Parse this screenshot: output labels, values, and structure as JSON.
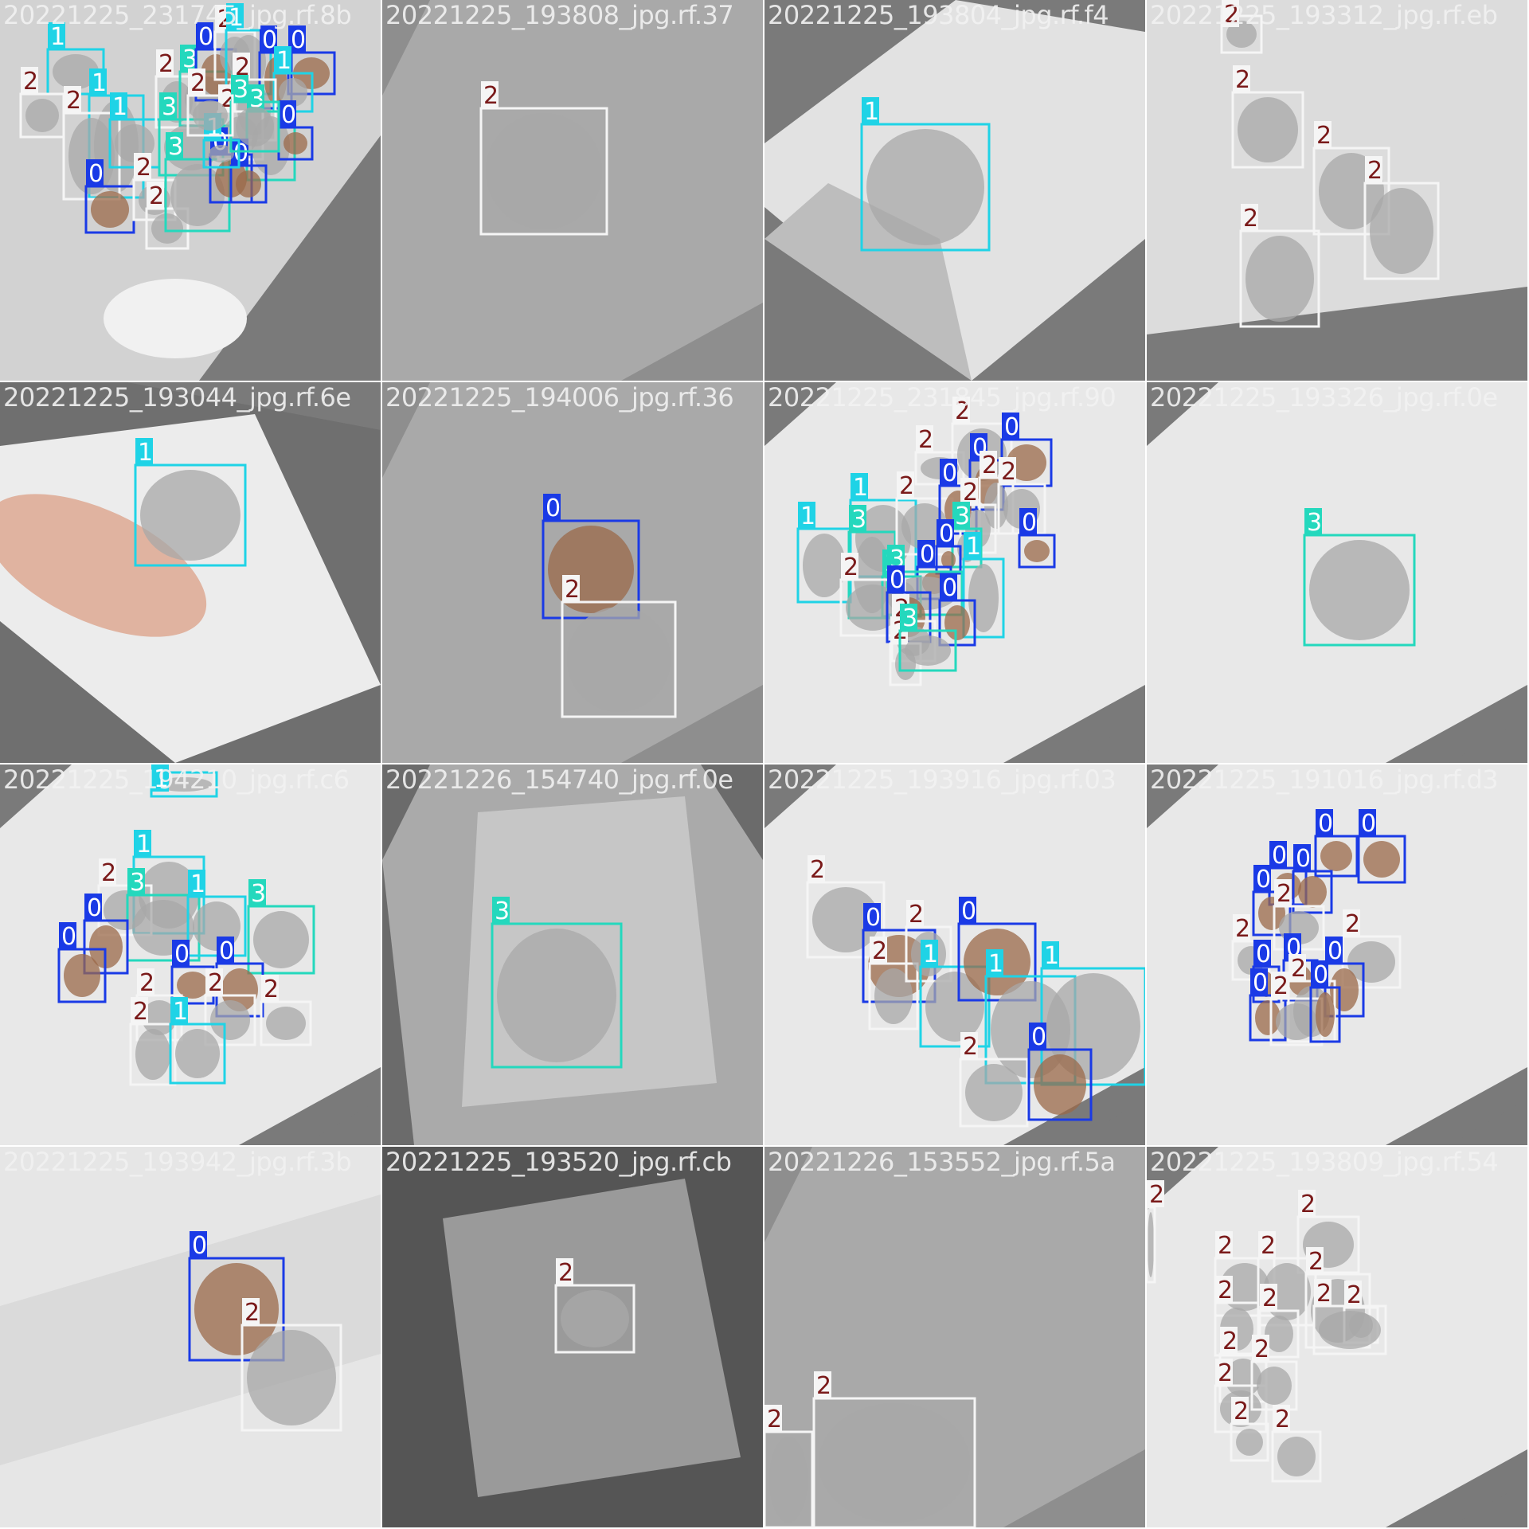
{
  "class_colors": {
    "0": "#1a3ae6",
    "1": "#1fd3e6",
    "2": "#f5f5f5",
    "3": "#24d8bd"
  },
  "class_text": {
    "0": "#ffffff",
    "1": "#ffffff",
    "2": "#7a1a1a",
    "3": "#ffffff"
  },
  "tiles": [
    {
      "name": "20221225_231745_jpg.rf.8b",
      "boxes": [
        {
          "c": "1",
          "r": [
            60,
            62,
            130,
            118
          ]
        },
        {
          "c": "2",
          "r": [
            26,
            118,
            80,
            172
          ]
        },
        {
          "c": "1",
          "r": [
            112,
            120,
            180,
            248
          ]
        },
        {
          "c": "2",
          "r": [
            80,
            142,
            150,
            250
          ]
        },
        {
          "c": "1",
          "r": [
            138,
            150,
            200,
            210
          ]
        },
        {
          "c": "0",
          "r": [
            108,
            234,
            168,
            292
          ]
        },
        {
          "c": "2",
          "r": [
            168,
            226,
            220,
            276
          ]
        },
        {
          "c": "2",
          "r": [
            184,
            262,
            236,
            312
          ]
        },
        {
          "c": "2",
          "r": [
            196,
            96,
            248,
            160
          ]
        },
        {
          "c": "3",
          "r": [
            226,
            90,
            292,
            158
          ]
        },
        {
          "c": "3",
          "r": [
            200,
            150,
            280,
            220
          ]
        },
        {
          "c": "3",
          "r": [
            208,
            200,
            288,
            290
          ]
        },
        {
          "c": "0",
          "r": [
            246,
            62,
            296,
            126
          ]
        },
        {
          "c": "2",
          "r": [
            270,
            40,
            320,
            100
          ]
        },
        {
          "c": "1",
          "r": [
            284,
            38,
            340,
            118
          ]
        },
        {
          "c": "0",
          "r": [
            326,
            66,
            366,
            136
          ]
        },
        {
          "c": "0",
          "r": [
            362,
            66,
            420,
            118
          ]
        },
        {
          "c": "1",
          "r": [
            344,
            92,
            392,
            140
          ]
        },
        {
          "c": "2",
          "r": [
            292,
            100,
            346,
            176
          ]
        },
        {
          "c": "2",
          "r": [
            274,
            140,
            330,
            200
          ]
        },
        {
          "c": "3",
          "r": [
            310,
            140,
            370,
            226
          ]
        },
        {
          "c": "0",
          "r": [
            350,
            160,
            392,
            200
          ]
        },
        {
          "c": "0",
          "r": [
            264,
            194,
            316,
            254
          ]
        },
        {
          "c": "0",
          "r": [
            290,
            208,
            334,
            254
          ]
        },
        {
          "c": "1",
          "r": [
            256,
            176,
            300,
            210
          ]
        },
        {
          "c": "3",
          "r": [
            290,
            128,
            350,
            190
          ]
        },
        {
          "c": "2",
          "r": [
            236,
            120,
            292,
            170
          ]
        }
      ],
      "bg": "grey-diamond"
    },
    {
      "name": "20221225_193808_jpg.rf.37",
      "boxes": [
        {
          "c": "2",
          "r": [
            124,
            136,
            282,
            294
          ]
        }
      ],
      "bg": "flat"
    },
    {
      "name": "20221225_193804_jpg.rf.f4",
      "boxes": [
        {
          "c": "1",
          "r": [
            122,
            156,
            282,
            314
          ]
        }
      ],
      "bg": "bright"
    },
    {
      "name": "20221225_193312_jpg.rf.eb",
      "boxes": [
        {
          "c": "2",
          "r": [
            94,
            20,
            144,
            66
          ]
        },
        {
          "c": "2",
          "r": [
            108,
            116,
            196,
            210
          ]
        },
        {
          "c": "2",
          "r": [
            210,
            186,
            304,
            294
          ]
        },
        {
          "c": "2",
          "r": [
            274,
            230,
            366,
            350
          ]
        },
        {
          "c": "2",
          "r": [
            118,
            290,
            216,
            410
          ]
        }
      ],
      "bg": "light"
    },
    {
      "name": "20221225_193044_jpg.rf.6e",
      "boxes": [
        {
          "c": "1",
          "r": [
            170,
            104,
            308,
            230
          ]
        }
      ],
      "bg": "hand"
    },
    {
      "name": "20221225_194006_jpg.rf.36",
      "boxes": [
        {
          "c": "0",
          "r": [
            202,
            174,
            322,
            296
          ]
        },
        {
          "c": "2",
          "r": [
            226,
            276,
            368,
            420
          ]
        }
      ],
      "bg": "flat"
    },
    {
      "name": "20221225_231845_jpg.rf.90",
      "boxes": [
        {
          "c": "1",
          "r": [
            42,
            184,
            108,
            276
          ]
        },
        {
          "c": "1",
          "r": [
            108,
            148,
            190,
            244
          ]
        },
        {
          "c": "3",
          "r": [
            106,
            188,
            164,
            296
          ]
        },
        {
          "c": "2",
          "r": [
            190,
            88,
            250,
            128
          ]
        },
        {
          "c": "2",
          "r": [
            166,
            146,
            236,
            216
          ]
        },
        {
          "c": "2",
          "r": [
            236,
            52,
            310,
            130
          ]
        },
        {
          "c": "0",
          "r": [
            258,
            98,
            300,
            160
          ]
        },
        {
          "c": "0",
          "r": [
            298,
            72,
            360,
            130
          ]
        },
        {
          "c": "0",
          "r": [
            220,
            130,
            266,
            190
          ]
        },
        {
          "c": "2",
          "r": [
            270,
            120,
            312,
            190
          ]
        },
        {
          "c": "2",
          "r": [
            246,
            154,
            290,
            214
          ]
        },
        {
          "c": "3",
          "r": [
            236,
            184,
            272,
            232
          ]
        },
        {
          "c": "0",
          "r": [
            216,
            206,
            246,
            240
          ]
        },
        {
          "c": "2",
          "r": [
            294,
            128,
            352,
            190
          ]
        },
        {
          "c": "0",
          "r": [
            320,
            192,
            364,
            232
          ]
        },
        {
          "c": "0",
          "r": [
            192,
            232,
            234,
            272
          ]
        },
        {
          "c": "3",
          "r": [
            148,
            244,
            196,
            294
          ]
        },
        {
          "c": "3",
          "r": [
            154,
            238,
            248,
            292
          ]
        },
        {
          "c": "1",
          "r": [
            250,
            222,
            300,
            320
          ]
        },
        {
          "c": "2",
          "r": [
            96,
            248,
            176,
            318
          ]
        },
        {
          "c": "0",
          "r": [
            154,
            264,
            208,
            326
          ]
        },
        {
          "c": "0",
          "r": [
            220,
            274,
            264,
            330
          ]
        },
        {
          "c": "2",
          "r": [
            160,
            300,
            214,
            350
          ]
        },
        {
          "c": "2",
          "r": [
            158,
            328,
            196,
            380
          ]
        },
        {
          "c": "3",
          "r": [
            170,
            312,
            240,
            362
          ]
        }
      ],
      "bg": "white-diamond"
    },
    {
      "name": "20221225_193326_jpg.rf.0e",
      "boxes": [
        {
          "c": "3",
          "r": [
            198,
            192,
            336,
            330
          ]
        }
      ],
      "bg": "white-diamond"
    },
    {
      "name": "20221225_194210_jpg.rf.c6",
      "boxes": [
        {
          "c": "1",
          "r": [
            190,
            10,
            272,
            40
          ]
        },
        {
          "c": "1",
          "r": [
            168,
            116,
            256,
            212
          ]
        },
        {
          "c": "2",
          "r": [
            124,
            152,
            190,
            214
          ]
        },
        {
          "c": "3",
          "r": [
            160,
            164,
            250,
            246
          ]
        },
        {
          "c": "1",
          "r": [
            236,
            166,
            308,
            240
          ]
        },
        {
          "c": "3",
          "r": [
            312,
            178,
            394,
            262
          ]
        },
        {
          "c": "0",
          "r": [
            106,
            196,
            160,
            262
          ]
        },
        {
          "c": "0",
          "r": [
            74,
            232,
            132,
            298
          ]
        },
        {
          "c": "0",
          "r": [
            216,
            254,
            268,
            300
          ]
        },
        {
          "c": "0",
          "r": [
            272,
            250,
            330,
            316
          ]
        },
        {
          "c": "2",
          "r": [
            172,
            290,
            228,
            346
          ]
        },
        {
          "c": "2",
          "r": [
            258,
            290,
            320,
            352
          ]
        },
        {
          "c": "2",
          "r": [
            328,
            298,
            390,
            352
          ]
        },
        {
          "c": "2",
          "r": [
            164,
            326,
            220,
            402
          ]
        },
        {
          "c": "1",
          "r": [
            214,
            326,
            282,
            400
          ]
        }
      ],
      "bg": "white-diamond"
    },
    {
      "name": "20221226_154740_jpg.rf.0e",
      "boxes": [
        {
          "c": "3",
          "r": [
            138,
            200,
            300,
            380
          ]
        }
      ],
      "bg": "grey-fold"
    },
    {
      "name": "20221225_193916_jpg.rf.03",
      "boxes": [
        {
          "c": "2",
          "r": [
            54,
            148,
            150,
            242
          ]
        },
        {
          "c": "0",
          "r": [
            124,
            208,
            214,
            298
          ]
        },
        {
          "c": "2",
          "r": [
            132,
            250,
            192,
            332
          ]
        },
        {
          "c": "2",
          "r": [
            178,
            204,
            234,
            272
          ]
        },
        {
          "c": "1",
          "r": [
            196,
            254,
            282,
            354
          ]
        },
        {
          "c": "0",
          "r": [
            244,
            200,
            340,
            296
          ]
        },
        {
          "c": "1",
          "r": [
            278,
            266,
            390,
            400
          ]
        },
        {
          "c": "1",
          "r": [
            348,
            256,
            478,
            402
          ]
        },
        {
          "c": "2",
          "r": [
            246,
            370,
            330,
            454
          ]
        },
        {
          "c": "0",
          "r": [
            332,
            358,
            410,
            446
          ]
        }
      ],
      "bg": "white-diamond"
    },
    {
      "name": "20221225_191016_jpg.rf.d3",
      "boxes": [
        {
          "c": "0",
          "r": [
            212,
            90,
            264,
            140
          ]
        },
        {
          "c": "0",
          "r": [
            266,
            90,
            324,
            148
          ]
        },
        {
          "c": "0",
          "r": [
            154,
            130,
            200,
            176
          ]
        },
        {
          "c": "0",
          "r": [
            184,
            134,
            232,
            186
          ]
        },
        {
          "c": "0",
          "r": [
            134,
            160,
            180,
            214
          ]
        },
        {
          "c": "2",
          "r": [
            160,
            178,
            222,
            232
          ]
        },
        {
          "c": "2",
          "r": [
            246,
            216,
            318,
            280
          ]
        },
        {
          "c": "2",
          "r": [
            108,
            222,
            154,
            270
          ]
        },
        {
          "c": "0",
          "r": [
            134,
            254,
            166,
            298
          ]
        },
        {
          "c": "0",
          "r": [
            172,
            246,
            214,
            296
          ]
        },
        {
          "c": "0",
          "r": [
            224,
            250,
            272,
            316
          ]
        },
        {
          "c": "2",
          "r": [
            178,
            272,
            236,
            348
          ]
        },
        {
          "c": "0",
          "r": [
            130,
            290,
            174,
            346
          ]
        },
        {
          "c": "2",
          "r": [
            156,
            294,
            220,
            352
          ]
        },
        {
          "c": "0",
          "r": [
            206,
            280,
            242,
            348
          ]
        }
      ],
      "bg": "white-diamond"
    },
    {
      "name": "20221225_193942_jpg.rf.3b",
      "boxes": [
        {
          "c": "0",
          "r": [
            238,
            140,
            356,
            268
          ]
        },
        {
          "c": "2",
          "r": [
            304,
            224,
            428,
            356
          ]
        }
      ],
      "bg": "light-full"
    },
    {
      "name": "20221225_193520_jpg.rf.cb",
      "boxes": [
        {
          "c": "2",
          "r": [
            218,
            174,
            316,
            258
          ]
        }
      ],
      "bg": "dark-card"
    },
    {
      "name": "20221226_153552_jpg.rf.5a",
      "boxes": [
        {
          "c": "2",
          "r": [
            0,
            358,
            60,
            478
          ]
        },
        {
          "c": "2",
          "r": [
            62,
            316,
            264,
            478
          ]
        }
      ],
      "bg": "flat"
    },
    {
      "name": "20221225_193809_jpg.rf.54",
      "boxes": [
        {
          "c": "2",
          "r": [
            0,
            76,
            10,
            170
          ]
        },
        {
          "c": "2",
          "r": [
            190,
            88,
            266,
            158
          ]
        },
        {
          "c": "2",
          "r": [
            86,
            140,
            160,
            212
          ]
        },
        {
          "c": "2",
          "r": [
            140,
            140,
            212,
            224
          ]
        },
        {
          "c": "2",
          "r": [
            200,
            160,
            280,
            252
          ]
        },
        {
          "c": "2",
          "r": [
            86,
            196,
            140,
            262
          ]
        },
        {
          "c": "2",
          "r": [
            142,
            206,
            190,
            264
          ]
        },
        {
          "c": "2",
          "r": [
            248,
            202,
            290,
            246
          ]
        },
        {
          "c": "2",
          "r": [
            92,
            260,
            150,
            320
          ]
        },
        {
          "c": "2",
          "r": [
            86,
            300,
            150,
            358
          ]
        },
        {
          "c": "2",
          "r": [
            132,
            270,
            188,
            330
          ]
        },
        {
          "c": "2",
          "r": [
            106,
            348,
            152,
            394
          ]
        },
        {
          "c": "2",
          "r": [
            158,
            358,
            218,
            420
          ]
        },
        {
          "c": "2",
          "r": [
            210,
            200,
            300,
            260
          ]
        }
      ],
      "bg": "white-diamond"
    }
  ]
}
